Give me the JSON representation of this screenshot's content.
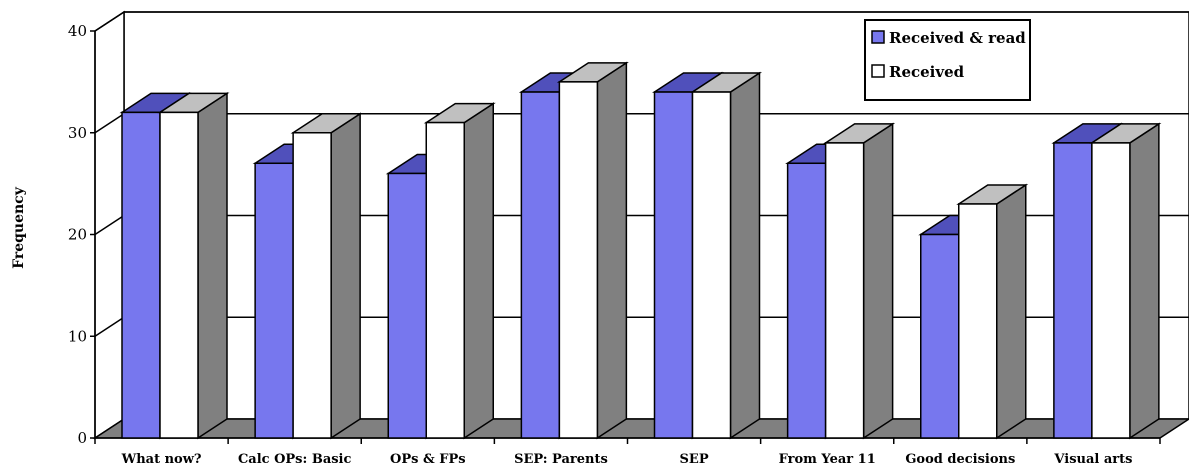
{
  "chart_data": {
    "type": "bar",
    "title": "",
    "xlabel": "",
    "ylabel": "Frequency",
    "ylim": [
      0,
      40
    ],
    "yticks": [
      0,
      10,
      20,
      30,
      40
    ],
    "grid": true,
    "legend_position": "top-right",
    "categories": [
      "What now?",
      "Calc OPs: Basic",
      "OPs & FPs",
      "SEP: Parents",
      "SEP",
      "From Year 11",
      "Good decisions",
      "Visual arts"
    ],
    "series": [
      {
        "name": "Received & read",
        "color": "#7777ee",
        "values": [
          32,
          27,
          26,
          34,
          34,
          27,
          20,
          29
        ]
      },
      {
        "name": "Received",
        "color": "#ffffff",
        "values": [
          32,
          30,
          31,
          35,
          34,
          29,
          23,
          29
        ]
      }
    ]
  }
}
